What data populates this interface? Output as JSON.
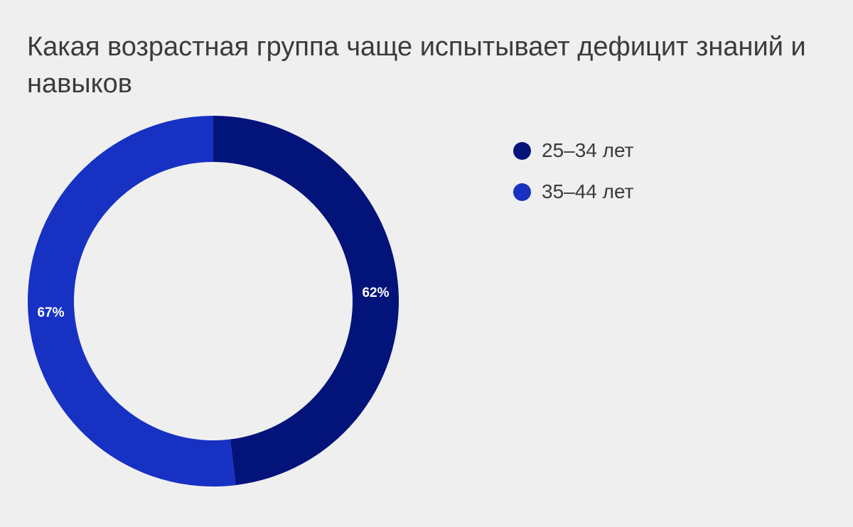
{
  "chart_data": {
    "type": "pie",
    "title": "Какая возрастная группа чаще испытывает дефицит знаний и навыков",
    "categories": [
      "25–34 лет",
      "35–44 лет"
    ],
    "values": [
      62,
      67
    ],
    "value_labels": [
      "62%",
      "67%"
    ],
    "colors": [
      "#02137a",
      "#1731c3"
    ],
    "legend_placement": "right",
    "donut": true
  }
}
